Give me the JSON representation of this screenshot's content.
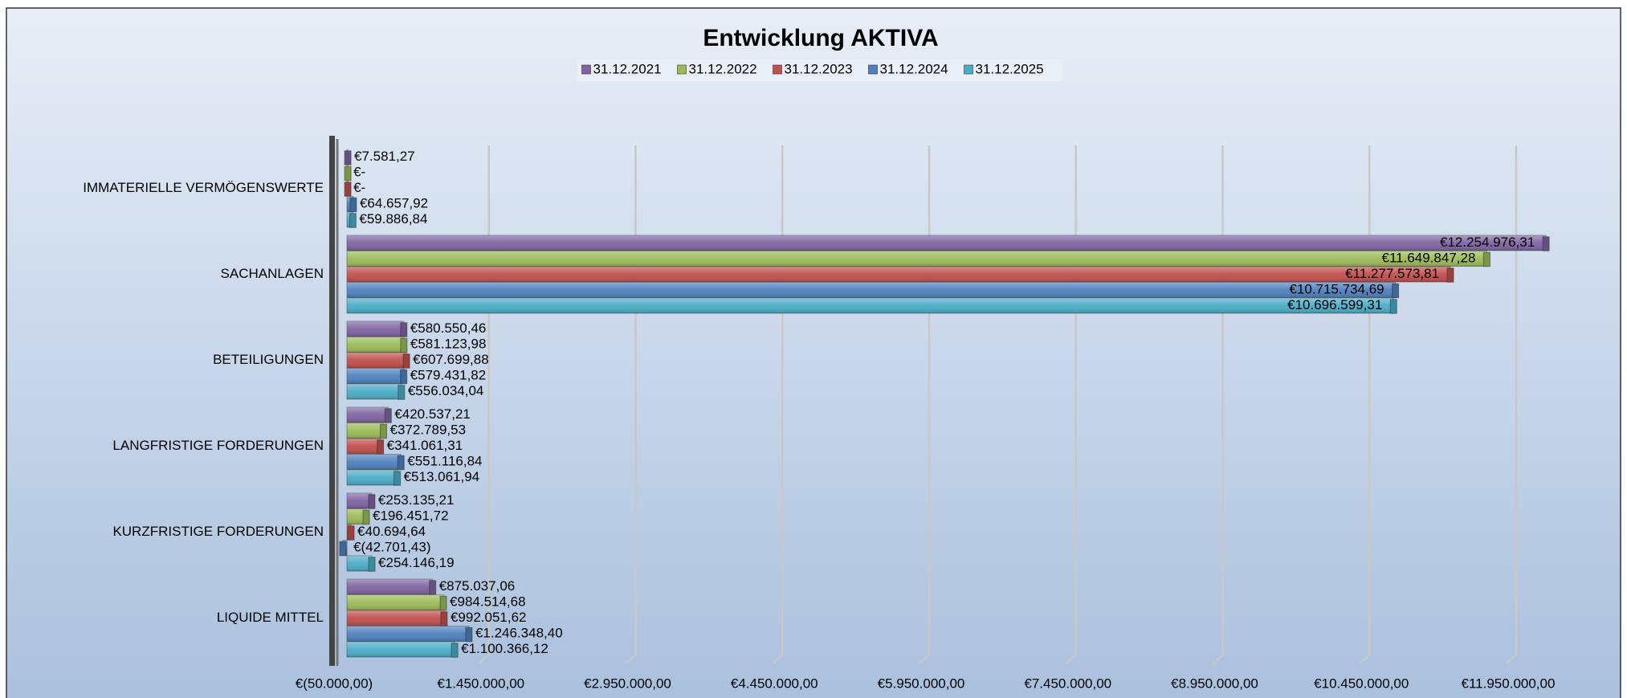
{
  "chart_data": {
    "type": "bar",
    "orientation": "horizontal",
    "title": "Entwicklung AKTIVA",
    "categories": [
      "IMMATERIELLE VERMÖGENSWERTE",
      "SACHANLAGEN",
      "BETEILIGUNGEN",
      "LANGFRISTIGE FORDERUNGEN",
      "KURZFRISTIGE FORDERUNGEN",
      "LIQUIDE MITTEL"
    ],
    "series": [
      {
        "name": "31.12.2021",
        "color": "#8064a2",
        "values": [
          7581.27,
          12254976.31,
          580550.46,
          420537.21,
          253135.21,
          875037.06
        ],
        "value_labels": [
          "€7.581,27",
          "€12.254.976,31",
          "€580.550,46",
          "€420.537,21",
          "€253.135,21",
          "€875.037,06"
        ]
      },
      {
        "name": "31.12.2022",
        "color": "#9bbb59",
        "values": [
          0,
          11649847.28,
          581123.98,
          372789.53,
          196451.72,
          984514.68
        ],
        "value_labels": [
          "€-",
          "€11.649.847,28",
          "€581.123,98",
          "€372.789,53",
          "€196.451,72",
          "€984.514,68"
        ]
      },
      {
        "name": "31.12.2023",
        "color": "#c0504d",
        "values": [
          0,
          11277573.81,
          607699.88,
          341061.31,
          40694.64,
          992051.62
        ],
        "value_labels": [
          "€-",
          "€11.277.573,81",
          "€607.699,88",
          "€341.061,31",
          "€40.694,64",
          "€992.051,62"
        ]
      },
      {
        "name": "31.12.2024",
        "color": "#4f81bd",
        "values": [
          64657.92,
          10715734.69,
          579431.82,
          551116.84,
          -42701.43,
          1246348.4
        ],
        "value_labels": [
          "€64.657,92",
          "€10.715.734,69",
          "€579.431,82",
          "€551.116,84",
          "€(42.701,43)",
          "€1.246.348,40"
        ]
      },
      {
        "name": "31.12.2025",
        "color": "#4bacc6",
        "values": [
          59886.84,
          10696599.31,
          556034.04,
          513061.94,
          254146.19,
          1100366.12
        ],
        "value_labels": [
          "€59.886,84",
          "€10.696.599,31",
          "€556.034,04",
          "€513.061,94",
          "€254.146,19",
          "€1.100.366,12"
        ]
      }
    ],
    "xlim": [
      -50000,
      11950000
    ],
    "xticks": [
      {
        "value": -50000,
        "label": "€(50.000,00)"
      },
      {
        "value": 1450000,
        "label": "€1.450.000,00"
      },
      {
        "value": 2950000,
        "label": "€2.950.000,00"
      },
      {
        "value": 4450000,
        "label": "€4.450.000,00"
      },
      {
        "value": 5950000,
        "label": "€5.950.000,00"
      },
      {
        "value": 7450000,
        "label": "€7.450.000,00"
      },
      {
        "value": 8950000,
        "label": "€8.950.000,00"
      },
      {
        "value": 10450000,
        "label": "€10.450.000,00"
      },
      {
        "value": 11950000,
        "label": "€11.950.000,00"
      }
    ],
    "grid": true,
    "legend": "top"
  }
}
